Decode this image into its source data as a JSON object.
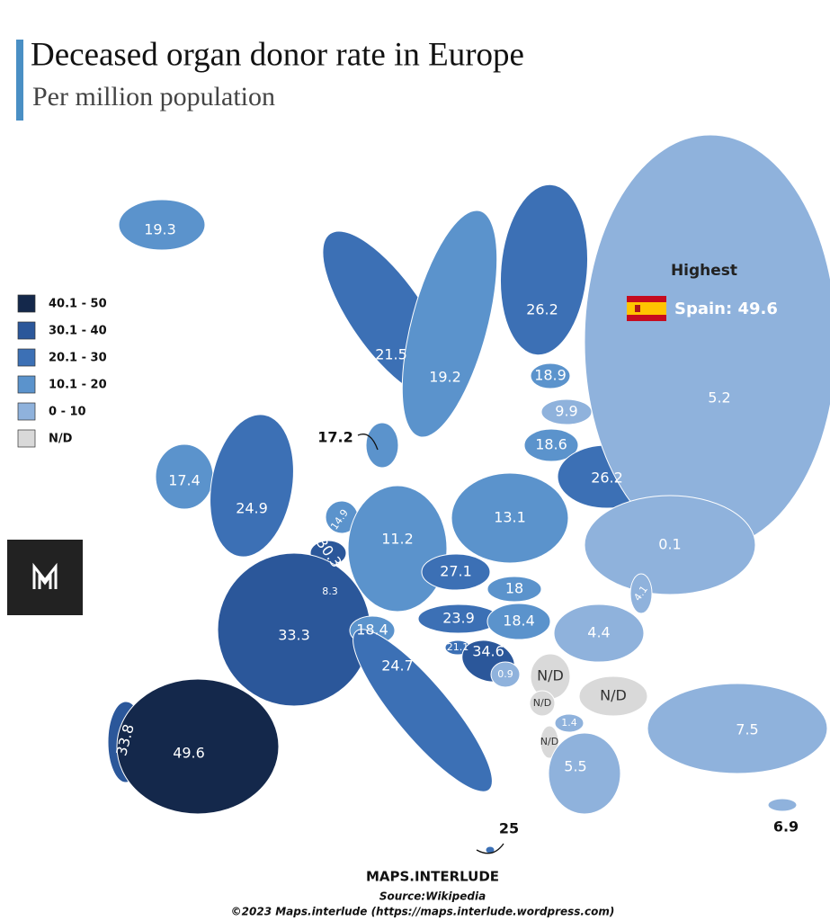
{
  "header": {
    "title": "Deceased organ donor rate in Europe",
    "subtitle": "Per million population"
  },
  "legend": [
    {
      "label": "40.1 - 50",
      "color": "#14284b"
    },
    {
      "label": "30.1 - 40",
      "color": "#2b579a"
    },
    {
      "label": "20.1 - 30",
      "color": "#3c70b5"
    },
    {
      "label": "10.1 - 20",
      "color": "#5b93cc"
    },
    {
      "label": "0 - 10",
      "color": "#8fb2dc"
    },
    {
      "label": "N/D",
      "color": "#d9d9d9"
    }
  ],
  "highlight": {
    "heading": "Highest",
    "label": "Spain: 49.6"
  },
  "regions": [
    {
      "value": 19.3,
      "color": "#5b93cc"
    },
    {
      "value": 17.4,
      "color": "#5b93cc"
    },
    {
      "value": 24.9,
      "color": "#3c70b5"
    },
    {
      "value": 21.5,
      "color": "#3c70b5"
    },
    {
      "value": 19.2,
      "color": "#5b93cc"
    },
    {
      "value": 26.2,
      "color": "#3c70b5"
    },
    {
      "value": 18.9,
      "color": "#5b93cc"
    },
    {
      "value": 9.9,
      "color": "#8fb2dc"
    },
    {
      "value": 18.6,
      "color": "#5b93cc"
    },
    {
      "value": 26.2,
      "color": "#3c70b5"
    },
    {
      "value": 5.2,
      "color": "#8fb2dc"
    },
    {
      "value": 17.2,
      "color": "#5b93cc"
    },
    {
      "value": 14.9,
      "color": "#5b93cc"
    },
    {
      "value": 30.3,
      "color": "#2b579a"
    },
    {
      "value": 8.3,
      "color": "#8fb2dc"
    },
    {
      "value": 11.2,
      "color": "#5b93cc"
    },
    {
      "value": 13.1,
      "color": "#5b93cc"
    },
    {
      "value": 27.1,
      "color": "#3c70b5"
    },
    {
      "value": 18,
      "color": "#5b93cc"
    },
    {
      "value": 23.9,
      "color": "#3c70b5"
    },
    {
      "value": 18.4,
      "color": "#5b93cc"
    },
    {
      "value": 0.1,
      "color": "#8fb2dc"
    },
    {
      "value": 4.1,
      "color": "#8fb2dc"
    },
    {
      "value": 4.4,
      "color": "#8fb2dc"
    },
    {
      "value": 33.3,
      "color": "#2b579a"
    },
    {
      "value": 18.4,
      "color": "#5b93cc"
    },
    {
      "value": 21.1,
      "color": "#3c70b5"
    },
    {
      "value": 34.6,
      "color": "#2b579a"
    },
    {
      "value": 0.9,
      "color": "#8fb2dc"
    },
    {
      "value": "N/D",
      "color": "#d9d9d9"
    },
    {
      "value": "N/D",
      "color": "#d9d9d9"
    },
    {
      "value": "N/D",
      "color": "#d9d9d9"
    },
    {
      "value": 1.4,
      "color": "#8fb2dc"
    },
    {
      "value": "N/D",
      "color": "#d9d9d9"
    },
    {
      "value": 24.7,
      "color": "#3c70b5"
    },
    {
      "value": 5.5,
      "color": "#8fb2dc"
    },
    {
      "value": 7.5,
      "color": "#8fb2dc"
    },
    {
      "value": 33.8,
      "color": "#2b579a"
    },
    {
      "value": 49.6,
      "color": "#14284b"
    },
    {
      "value": 25,
      "color": "#3c70b5"
    },
    {
      "value": 6.9,
      "color": "#8fb2dc"
    }
  ],
  "footer": {
    "brand": "MAPS.INTERLUDE",
    "source": "Source:Wikipedia",
    "copyright": "©2023 Maps.interlude (https://maps.interlude.wordpress.com)"
  }
}
